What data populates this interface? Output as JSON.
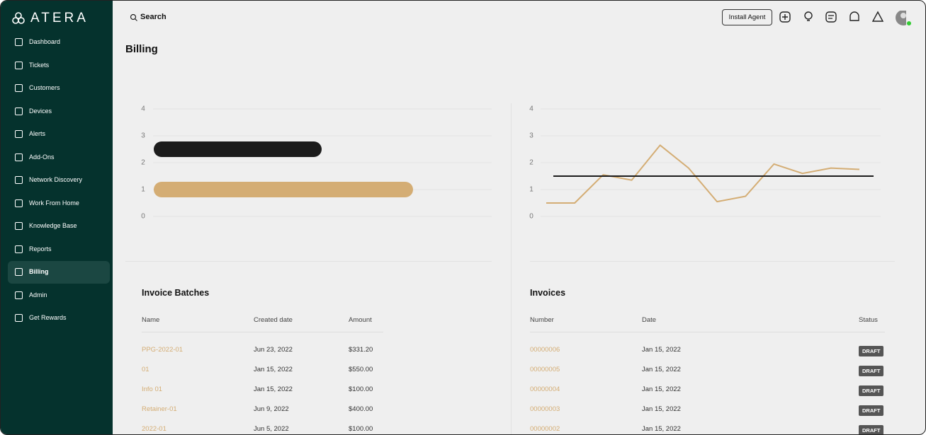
{
  "sidebar": {
    "logo": "ATERA",
    "nav": [
      "Dashboard",
      "Tickets",
      "Customers",
      "Devices",
      "Alerts",
      "Add-Ons",
      "Network Discovery",
      "Work From Home",
      "Knowledge Base",
      "Reports",
      "Billing",
      "Admin",
      "Get Rewards"
    ]
  },
  "topbar": {
    "search": "Search",
    "install_agent": "Install Agent"
  },
  "page": {
    "title": "Billing"
  },
  "chart_data": [
    {
      "type": "bar",
      "ylim": [
        0,
        4
      ],
      "yticks": [
        0,
        1,
        2,
        3,
        4
      ],
      "grid": true,
      "series": [
        {
          "color": "#1c1c1c",
          "values": [
            2.5
          ]
        },
        {
          "color": "#d4ad74",
          "values": [
            1
          ]
        }
      ]
    },
    {
      "type": "line",
      "ylim": [
        0,
        4
      ],
      "yticks": [
        0,
        1,
        2,
        3,
        4
      ],
      "grid": true,
      "series": [
        {
          "color": "#d4ad74",
          "values": [
            0.5,
            0.5,
            1.55,
            1.35,
            2.65,
            1.8,
            0.55,
            0.75,
            1.95,
            1.6,
            1.8,
            1.75
          ]
        },
        {
          "color": "#1c1c1c",
          "values": [
            1.5,
            1.5,
            1.5,
            1.5,
            1.5,
            1.5,
            1.5,
            1.5,
            1.5,
            1.5,
            1.5,
            1.5
          ]
        }
      ]
    }
  ],
  "batches": {
    "title": "Invoice Batches",
    "columns": [
      "Name",
      "Created date",
      "Amount"
    ],
    "rows": [
      [
        "PPG-2022-01",
        "Jun 23, 2022",
        "$331.20"
      ],
      [
        "01",
        "Jan 15, 2022",
        "$550.00"
      ],
      [
        "Info 01",
        "Jan 15, 2022",
        "$100.00"
      ],
      [
        "Retainer-01",
        "Jun 9, 2022",
        "$400.00"
      ],
      [
        "2022-01",
        "Jun 5, 2022",
        "$100.00"
      ]
    ]
  },
  "invoices": {
    "title": "Invoices",
    "columns": [
      "Number",
      "Date",
      "Status"
    ],
    "rows": [
      [
        "00000006",
        "Jan 15, 2022",
        "DRAFT"
      ],
      [
        "00000005",
        "Jan 15, 2022",
        "DRAFT"
      ],
      [
        "00000004",
        "Jan 15, 2022",
        "DRAFT"
      ],
      [
        "00000003",
        "Jan 15, 2022",
        "DRAFT"
      ],
      [
        "00000002",
        "Jan 15, 2022",
        "DRAFT"
      ]
    ]
  }
}
